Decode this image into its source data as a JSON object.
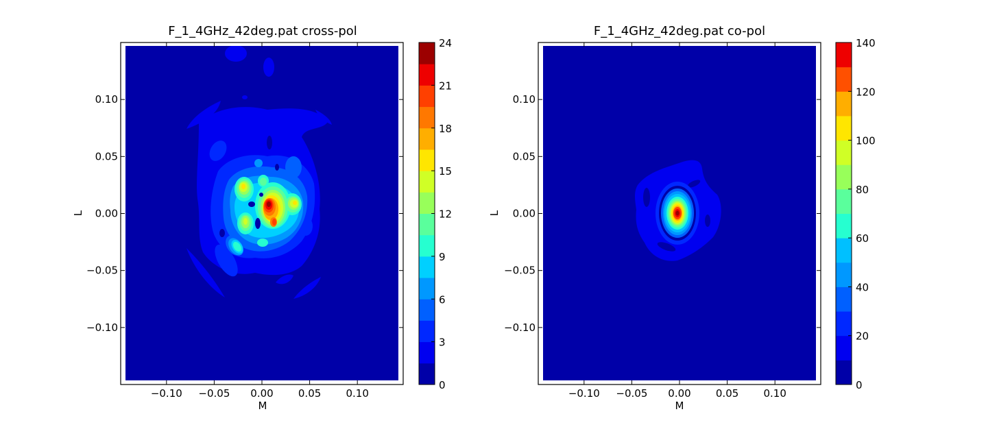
{
  "chart_data": [
    {
      "type": "heatmap",
      "subtype": "filled-contour",
      "title": "F_1_4GHz_42deg.pat cross-pol",
      "xlabel": "M",
      "ylabel": "L",
      "xlim": [
        -0.148,
        0.148
      ],
      "ylim": [
        -0.15,
        0.15
      ],
      "x_ticks": [
        -0.1,
        -0.05,
        0.0,
        0.05,
        0.1
      ],
      "x_tick_labels": [
        "−0.10",
        "−0.05",
        "0.00",
        "0.05",
        "0.10"
      ],
      "y_ticks": [
        -0.1,
        -0.05,
        0.0,
        0.05,
        0.1
      ],
      "y_tick_labels": [
        "−0.10",
        "−0.05",
        "0.00",
        "0.05",
        "0.10"
      ],
      "colorbar": {
        "min": 0,
        "max": 24,
        "levels": 16,
        "ticks": [
          0,
          3,
          6,
          9,
          12,
          15,
          18,
          21,
          24
        ],
        "tick_labels": [
          "0",
          "3",
          "6",
          "9",
          "12",
          "15",
          "18",
          "21",
          "24"
        ]
      },
      "features": [
        {
          "x": 0.008,
          "y": 0.006,
          "value": 23.5
        },
        {
          "x": 0.013,
          "y": -0.012,
          "value": 20
        },
        {
          "x": 0.035,
          "y": 0.008,
          "value": 17
        },
        {
          "x": -0.018,
          "y": 0.022,
          "value": 16
        },
        {
          "x": -0.003,
          "y": 0.024,
          "value": 12
        },
        {
          "x": -0.018,
          "y": -0.008,
          "value": 14
        },
        {
          "x": -0.026,
          "y": -0.03,
          "value": 10
        },
        {
          "x": 0.0,
          "y": -0.025,
          "value": 9
        },
        {
          "x": -0.005,
          "y": 0.045,
          "value": 6
        },
        {
          "x": 0.038,
          "y": 0.04,
          "value": 5
        },
        {
          "x": 0.04,
          "y": -0.03,
          "value": 5
        }
      ]
    },
    {
      "type": "heatmap",
      "subtype": "filled-contour",
      "title": "F_1_4GHz_42deg.pat co-pol",
      "xlabel": "M",
      "ylabel": "L",
      "xlim": [
        -0.148,
        0.148
      ],
      "ylim": [
        -0.15,
        0.15
      ],
      "x_ticks": [
        -0.1,
        -0.05,
        0.0,
        0.05,
        0.1
      ],
      "x_tick_labels": [
        "−0.10",
        "−0.05",
        "0.00",
        "0.05",
        "0.10"
      ],
      "y_ticks": [
        -0.1,
        -0.05,
        0.0,
        0.05,
        0.1
      ],
      "y_tick_labels": [
        "−0.10",
        "−0.05",
        "0.00",
        "0.05",
        "0.10"
      ],
      "colorbar": {
        "min": 0,
        "max": 140,
        "levels": 14,
        "ticks": [
          0,
          20,
          40,
          60,
          80,
          100,
          120,
          140
        ],
        "tick_labels": [
          "0",
          "20",
          "40",
          "60",
          "80",
          "100",
          "120",
          "140"
        ]
      },
      "features": [
        {
          "x": -0.001,
          "y": 0.0,
          "value": 140
        }
      ]
    }
  ]
}
